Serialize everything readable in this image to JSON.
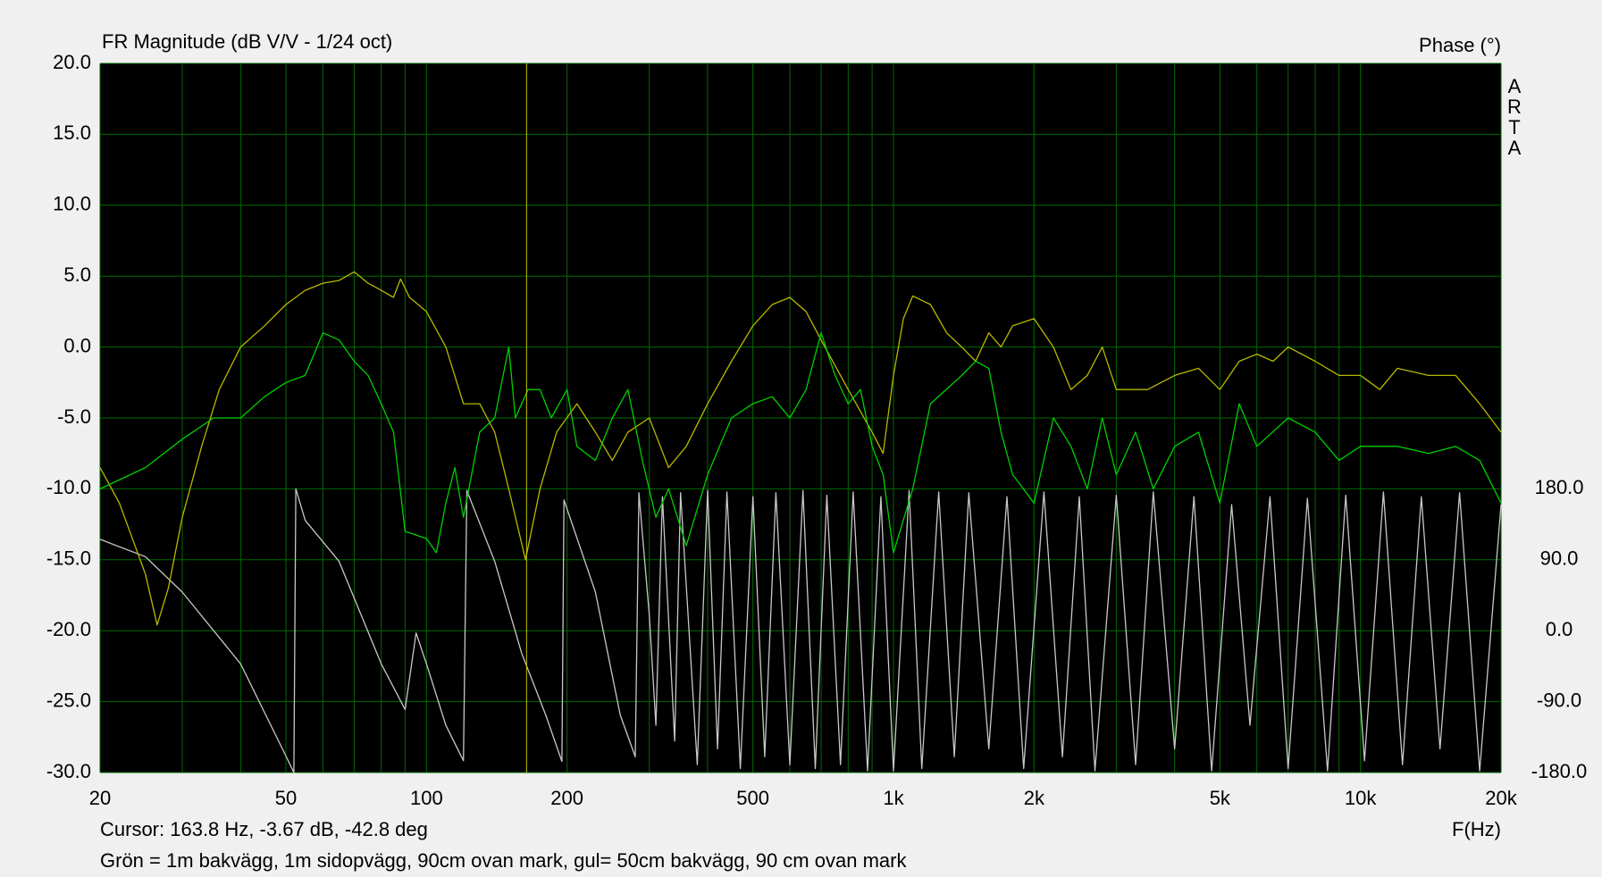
{
  "chart_data": {
    "type": "line",
    "title": "FR Magnitude (dB V/V - 1/24 oct)",
    "y2_title": "Phase (°)",
    "watermark": "ARTA",
    "x_label": "F(Hz)",
    "note": "Grön = 1m bakvägg, 1m sidopvägg, 90cm ovan mark, gul= 50cm bakvägg, 90 cm ovan mark",
    "log_x": true,
    "grid": true,
    "xlim": [
      20,
      20000
    ],
    "xticks": [
      {
        "value": 20,
        "label": "20"
      },
      {
        "value": 50,
        "label": "50"
      },
      {
        "value": 100,
        "label": "100"
      },
      {
        "value": 200,
        "label": "200"
      },
      {
        "value": 500,
        "label": "500"
      },
      {
        "value": 1000,
        "label": "1k"
      },
      {
        "value": 2000,
        "label": "2k"
      },
      {
        "value": 5000,
        "label": "5k"
      },
      {
        "value": 10000,
        "label": "10k"
      },
      {
        "value": 20000,
        "label": "20k"
      }
    ],
    "x_minor_gridlines": [
      30,
      40,
      60,
      70,
      80,
      90,
      300,
      400,
      600,
      700,
      800,
      900,
      3000,
      4000,
      6000,
      7000,
      8000,
      9000
    ],
    "ylim": [
      -30,
      20
    ],
    "yticks": [
      {
        "value": 20,
        "label": "20.0"
      },
      {
        "value": 15,
        "label": "15.0"
      },
      {
        "value": 10,
        "label": "10.0"
      },
      {
        "value": 5,
        "label": "5.0"
      },
      {
        "value": 0,
        "label": "0.0"
      },
      {
        "value": -5,
        "label": "-5.0"
      },
      {
        "value": -10,
        "label": "-10.0"
      },
      {
        "value": -15,
        "label": "-15.0"
      },
      {
        "value": -20,
        "label": "-20.0"
      },
      {
        "value": -25,
        "label": "-25.0"
      },
      {
        "value": -30,
        "label": "-30.0"
      }
    ],
    "y2lim": [
      -180,
      720
    ],
    "y2ticks": [
      {
        "value": 180,
        "label": "180.0"
      },
      {
        "value": 90,
        "label": "90.0"
      },
      {
        "value": 0,
        "label": "0.0"
      },
      {
        "value": -90,
        "label": "-90.0"
      },
      {
        "value": -180,
        "label": "-180.0"
      }
    ],
    "cursor": {
      "x": 163.8,
      "color": "#c8c800",
      "label": "Cursor: 163.8 Hz, -3.67 dB, -42.8 deg"
    },
    "series": [
      {
        "color": "#b8b800",
        "x": [
          20,
          22,
          25,
          26.5,
          28,
          30,
          33,
          36,
          40,
          45,
          50,
          55,
          60,
          65,
          70,
          75,
          80,
          85,
          88,
          92,
          100,
          110,
          120,
          130,
          140,
          150,
          163,
          175,
          190,
          210,
          230,
          250,
          270,
          300,
          330,
          360,
          400,
          450,
          500,
          550,
          600,
          650,
          700,
          800,
          900,
          950,
          1000,
          1050,
          1100,
          1200,
          1300,
          1400,
          1500,
          1600,
          1700,
          1800,
          2000,
          2200,
          2400,
          2600,
          2800,
          3000,
          3500,
          4000,
          4500,
          5000,
          5500,
          6000,
          6500,
          7000,
          8000,
          9000,
          10000,
          11000,
          12000,
          14000,
          16000,
          18000,
          20000
        ],
        "values": [
          -8.5,
          -11,
          -16,
          -19.6,
          -17,
          -12,
          -7,
          -3,
          0,
          1.5,
          3,
          4,
          4.5,
          4.7,
          5.3,
          4.5,
          4,
          3.5,
          4.8,
          3.5,
          2.5,
          0,
          -4,
          -4,
          -6,
          -10,
          -15,
          -10,
          -6,
          -4,
          -6,
          -8,
          -6,
          -5,
          -8.5,
          -7,
          -4,
          -1,
          1.5,
          3,
          3.5,
          2.5,
          0.5,
          -3,
          -6,
          -7.5,
          -2,
          2,
          3.6,
          3,
          1,
          0,
          -1,
          1,
          0,
          1.5,
          2,
          0,
          -3,
          -2,
          0,
          -3,
          -3,
          -2,
          -1.5,
          -3,
          -1,
          -0.5,
          -1,
          0,
          -1,
          -2,
          -2,
          -3,
          -1.5,
          -2,
          -2,
          -4,
          -6
        ]
      },
      {
        "color": "#00d000",
        "x": [
          20,
          25,
          30,
          35,
          40,
          45,
          50,
          55,
          60,
          65,
          70,
          75,
          80,
          85,
          90,
          100,
          105,
          110,
          115,
          120,
          130,
          140,
          150,
          155,
          165,
          175,
          185,
          200,
          210,
          230,
          250,
          270,
          290,
          310,
          330,
          360,
          400,
          450,
          500,
          550,
          600,
          650,
          700,
          750,
          800,
          850,
          900,
          950,
          1000,
          1100,
          1200,
          1400,
          1500,
          1600,
          1700,
          1800,
          2000,
          2200,
          2400,
          2600,
          2800,
          3000,
          3300,
          3600,
          4000,
          4500,
          5000,
          5500,
          6000,
          7000,
          8000,
          9000,
          10000,
          12000,
          14000,
          16000,
          18000,
          20000
        ],
        "values": [
          -10,
          -8.5,
          -6.5,
          -5,
          -5,
          -3.5,
          -2.5,
          -2,
          1,
          0.5,
          -1,
          -2,
          -4,
          -6,
          -13,
          -13.5,
          -14.5,
          -11,
          -8.5,
          -12,
          -6,
          -5,
          0,
          -5,
          -3,
          -3,
          -5,
          -3,
          -7,
          -8,
          -5,
          -3,
          -8,
          -12,
          -10,
          -14,
          -9,
          -5,
          -4,
          -3.5,
          -5,
          -3,
          1,
          -2,
          -4,
          -3,
          -7,
          -9,
          -14.5,
          -10,
          -4,
          -2,
          -1,
          -1.5,
          -6,
          -9,
          -11,
          -5,
          -7,
          -10,
          -5,
          -9,
          -6,
          -10,
          -7,
          -6,
          -11,
          -4,
          -7,
          -5,
          -6,
          -8,
          -7,
          -7,
          -7.5,
          -7,
          -8,
          -11
        ]
      },
      {
        "color": "#c8c8c8",
        "axis": "y2",
        "x": [
          20,
          25,
          30,
          40,
          50,
          52,
          52.5,
          55,
          65,
          80,
          90,
          95,
          100,
          110,
          120,
          122,
          140,
          160,
          180,
          195,
          197,
          230,
          260,
          280,
          285,
          300,
          310,
          320,
          340,
          350,
          380,
          400,
          420,
          440,
          470,
          500,
          530,
          560,
          600,
          640,
          680,
          720,
          770,
          820,
          880,
          940,
          1000,
          1080,
          1150,
          1250,
          1350,
          1450,
          1600,
          1750,
          1900,
          2100,
          2300,
          2500,
          2700,
          3000,
          3300,
          3600,
          4000,
          4400,
          4800,
          5300,
          5800,
          6400,
          7000,
          7700,
          8500,
          9300,
          10200,
          11200,
          12300,
          13500,
          14800,
          16300,
          18000,
          20000
        ],
        "values": [
          116,
          94,
          49,
          -42,
          -159,
          -180,
          180,
          140,
          88,
          -42,
          -100,
          -3,
          -42,
          -120,
          -165,
          178,
          88,
          -29,
          -107,
          -166,
          166,
          49,
          -107,
          -160,
          175,
          20,
          -120,
          170,
          -140,
          175,
          -170,
          178,
          -150,
          176,
          -175,
          170,
          -160,
          175,
          -170,
          178,
          -175,
          172,
          -170,
          176,
          -178,
          170,
          -178,
          178,
          -175,
          176,
          -160,
          175,
          -150,
          170,
          -175,
          176,
          -160,
          170,
          -178,
          172,
          -170,
          176,
          -150,
          170,
          -178,
          160,
          -120,
          170,
          -175,
          168,
          -178,
          172,
          -165,
          176,
          -170,
          170,
          -150,
          175,
          -178,
          160
        ]
      }
    ]
  }
}
